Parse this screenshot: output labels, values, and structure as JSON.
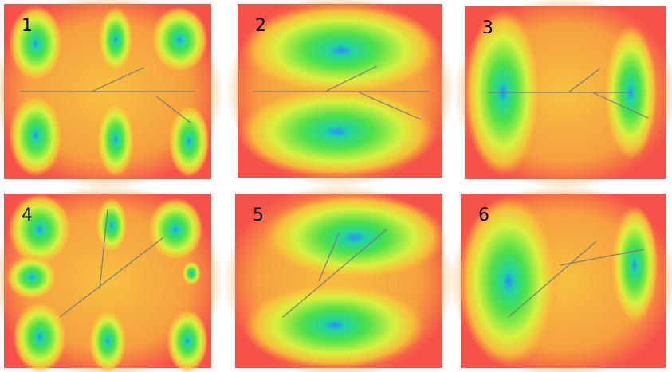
{
  "panels": [
    {
      "label": "1"
    },
    {
      "label": "2"
    },
    {
      "label": "3"
    },
    {
      "label": "4"
    },
    {
      "label": "5"
    },
    {
      "label": "6"
    }
  ]
}
